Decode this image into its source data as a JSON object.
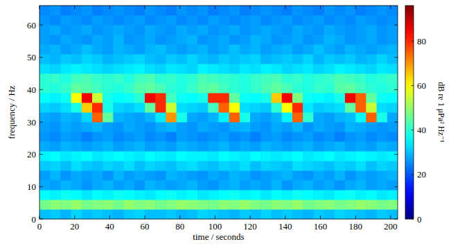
{
  "chart_data": {
    "type": "heatmap",
    "x_label": "time / seconds",
    "y_label": "frequency / Hz",
    "xlim": [
      0,
      204
    ],
    "xticks": [
      0,
      20,
      40,
      60,
      80,
      100,
      120,
      140,
      160,
      180,
      200
    ],
    "ylim": [
      0,
      66
    ],
    "yticks": [
      0,
      10,
      20,
      30,
      40,
      50,
      60
    ],
    "x_bins": [
      0,
      6,
      12,
      18,
      24,
      30,
      36,
      42,
      48,
      54,
      60,
      66,
      72,
      78,
      84,
      90,
      96,
      102,
      108,
      114,
      120,
      126,
      132,
      138,
      144,
      150,
      156,
      162,
      168,
      174,
      180,
      186,
      192,
      198,
      204
    ],
    "y_bins": [
      0,
      3,
      6,
      9,
      12,
      15,
      18,
      21,
      24,
      27,
      30,
      33,
      36,
      39,
      42,
      45,
      48,
      51,
      54,
      57,
      60,
      63,
      66
    ],
    "cells": [
      [
        30,
        31,
        29,
        32,
        30,
        31,
        30,
        29,
        31,
        32,
        30,
        30,
        31,
        29,
        30,
        32,
        31,
        30,
        29,
        31,
        30,
        32,
        30,
        31,
        30,
        29,
        31,
        30,
        32,
        31,
        30,
        29,
        31,
        30
      ],
      [
        47,
        49,
        48,
        50,
        47,
        48,
        49,
        47,
        50,
        48,
        49,
        47,
        48,
        50,
        49,
        48,
        47,
        49,
        48,
        50,
        48,
        47,
        49,
        48,
        50,
        47,
        48,
        49,
        47,
        48,
        50,
        49,
        47,
        48
      ],
      [
        36,
        35,
        37,
        36,
        34,
        36,
        35,
        37,
        36,
        35,
        34,
        36,
        37,
        35,
        36,
        34,
        35,
        36,
        37,
        35,
        36,
        34,
        36,
        35,
        37,
        36,
        35,
        34,
        36,
        37,
        35,
        36,
        34,
        35
      ],
      [
        28,
        27,
        29,
        28,
        26,
        28,
        29,
        27,
        28,
        26,
        29,
        28,
        27,
        28,
        29,
        27,
        26,
        28,
        29,
        27,
        28,
        27,
        29,
        26,
        28,
        29,
        27,
        28,
        26,
        28,
        29,
        27,
        28,
        27
      ],
      [
        27,
        29,
        26,
        28,
        27,
        28,
        26,
        29,
        27,
        28,
        27,
        26,
        29,
        28,
        27,
        26,
        28,
        27,
        29,
        28,
        26,
        27,
        28,
        29,
        27,
        26,
        28,
        27,
        29,
        26,
        28,
        27,
        28,
        29
      ],
      [
        31,
        32,
        30,
        33,
        31,
        30,
        32,
        31,
        33,
        30,
        32,
        31,
        30,
        32,
        33,
        31,
        30,
        32,
        31,
        33,
        30,
        32,
        31,
        30,
        33,
        32,
        31,
        30,
        32,
        31,
        33,
        30,
        32,
        31
      ],
      [
        35,
        36,
        34,
        35,
        36,
        34,
        35,
        36,
        35,
        34,
        36,
        35,
        34,
        36,
        35,
        35,
        34,
        36,
        35,
        34,
        36,
        35,
        34,
        35,
        36,
        34,
        35,
        36,
        34,
        35,
        36,
        35,
        34,
        35
      ],
      [
        28,
        27,
        29,
        28,
        27,
        28,
        29,
        27,
        28,
        29,
        27,
        28,
        27,
        29,
        28,
        27,
        28,
        29,
        27,
        28,
        27,
        29,
        28,
        27,
        28,
        29,
        27,
        28,
        29,
        27,
        28,
        27,
        29,
        28
      ],
      [
        26,
        25,
        27,
        26,
        24,
        26,
        27,
        25,
        26,
        27,
        25,
        26,
        24,
        27,
        26,
        25,
        26,
        27,
        25,
        26,
        24,
        26,
        27,
        25,
        26,
        27,
        25,
        26,
        24,
        26,
        27,
        25,
        26,
        25
      ],
      [
        27,
        26,
        28,
        27,
        28,
        29,
        27,
        26,
        28,
        27,
        26,
        28,
        29,
        27,
        26,
        28,
        27,
        26,
        28,
        29,
        27,
        26,
        28,
        27,
        29,
        26,
        28,
        27,
        26,
        29,
        28,
        27,
        26,
        27
      ],
      [
        28,
        27,
        29,
        28,
        32,
        75,
        45,
        29,
        28,
        27,
        29,
        34,
        70,
        38,
        28,
        27,
        29,
        35,
        75,
        38,
        28,
        27,
        29,
        35,
        75,
        40,
        28,
        27,
        29,
        30,
        36,
        75,
        38,
        28
      ],
      [
        32,
        31,
        33,
        38,
        65,
        80,
        38,
        32,
        31,
        33,
        45,
        80,
        55,
        33,
        32,
        31,
        42,
        75,
        60,
        33,
        32,
        31,
        40,
        60,
        80,
        34,
        31,
        32,
        33,
        45,
        75,
        55,
        33,
        32
      ],
      [
        36,
        35,
        37,
        60,
        85,
        55,
        38,
        36,
        37,
        40,
        85,
        80,
        42,
        37,
        36,
        38,
        80,
        80,
        45,
        37,
        36,
        38,
        65,
        85,
        48,
        37,
        36,
        35,
        38,
        85,
        75,
        45,
        37,
        36
      ],
      [
        40,
        39,
        41,
        45,
        44,
        42,
        40,
        39,
        41,
        44,
        45,
        43,
        40,
        39,
        41,
        44,
        45,
        42,
        40,
        39,
        41,
        43,
        45,
        43,
        40,
        39,
        41,
        40,
        44,
        45,
        42,
        40,
        39,
        40
      ],
      [
        40,
        41,
        39,
        42,
        43,
        41,
        40,
        41,
        39,
        42,
        43,
        40,
        41,
        39,
        40,
        43,
        42,
        41,
        40,
        39,
        41,
        42,
        43,
        40,
        41,
        39,
        40,
        41,
        43,
        42,
        41,
        39,
        40,
        41
      ],
      [
        33,
        32,
        34,
        35,
        34,
        33,
        32,
        33,
        34,
        35,
        33,
        32,
        34,
        33,
        32,
        35,
        34,
        33,
        32,
        34,
        33,
        35,
        34,
        32,
        33,
        34,
        32,
        33,
        35,
        34,
        33,
        32,
        34,
        33
      ],
      [
        30,
        29,
        31,
        30,
        32,
        31,
        29,
        30,
        31,
        32,
        30,
        29,
        31,
        30,
        32,
        30,
        29,
        31,
        30,
        31,
        32,
        29,
        30,
        31,
        30,
        32,
        29,
        31,
        30,
        31,
        29,
        30,
        32,
        30
      ],
      [
        28,
        29,
        27,
        28,
        30,
        28,
        27,
        29,
        28,
        27,
        29,
        30,
        28,
        27,
        28,
        29,
        27,
        28,
        30,
        28,
        29,
        27,
        28,
        29,
        27,
        28,
        30,
        28,
        27,
        29,
        28,
        27,
        28,
        29
      ],
      [
        27,
        26,
        28,
        27,
        26,
        28,
        27,
        29,
        26,
        27,
        28,
        26,
        27,
        28,
        29,
        26,
        27,
        28,
        26,
        27,
        29,
        28,
        26,
        27,
        28,
        26,
        27,
        29,
        28,
        26,
        27,
        28,
        26,
        27
      ],
      [
        27,
        28,
        26,
        27,
        28,
        26,
        27,
        28,
        27,
        26,
        28,
        27,
        26,
        28,
        27,
        28,
        26,
        27,
        28,
        26,
        27,
        28,
        27,
        26,
        28,
        27,
        26,
        28,
        27,
        26,
        27,
        28,
        26,
        27
      ],
      [
        26,
        25,
        27,
        26,
        25,
        27,
        26,
        25,
        26,
        27,
        25,
        26,
        27,
        25,
        26,
        25,
        27,
        26,
        25,
        26,
        27,
        25,
        26,
        27,
        25,
        26,
        27,
        25,
        26,
        25,
        27,
        26,
        25,
        26
      ],
      [
        25,
        26,
        24,
        25,
        26,
        24,
        25,
        26,
        25,
        24,
        26,
        25,
        24,
        26,
        25,
        26,
        24,
        25,
        26,
        24,
        25,
        26,
        25,
        24,
        26,
        25,
        24,
        26,
        25,
        26,
        24,
        25,
        26,
        25
      ]
    ],
    "color_range": [
      0,
      96
    ],
    "color_ticks": [
      0,
      20,
      40,
      60,
      80
    ],
    "color_label": "dB re 1 μPa² Hz⁻¹"
  }
}
